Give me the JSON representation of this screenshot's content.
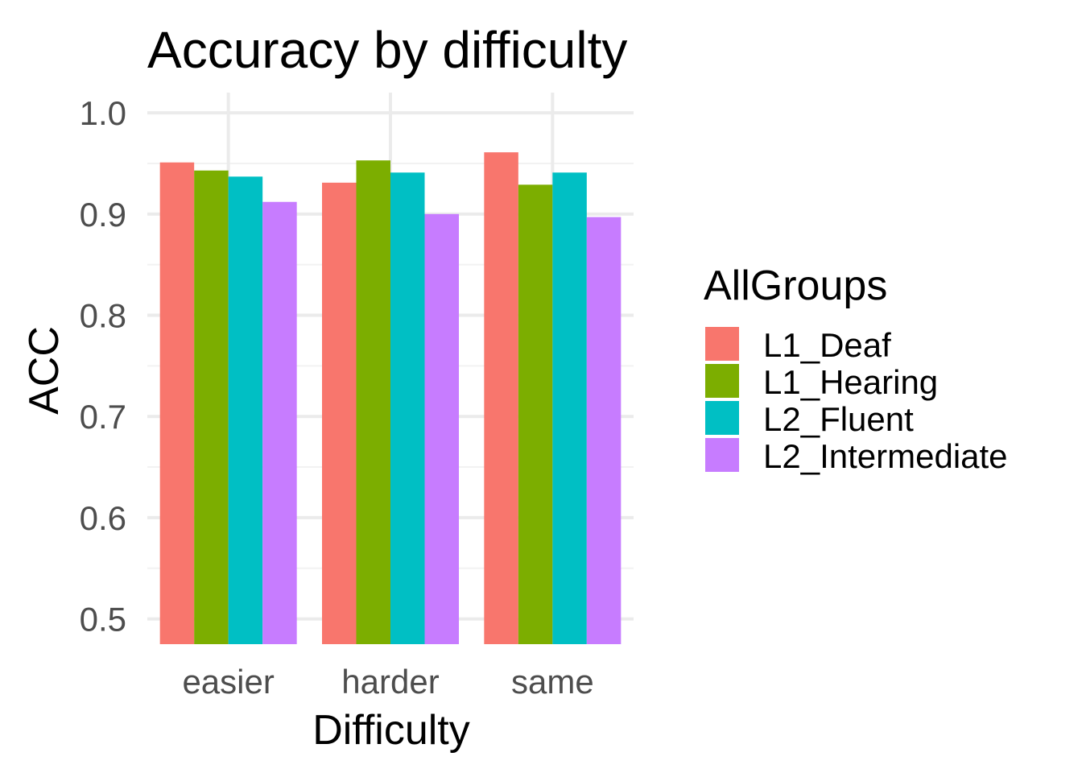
{
  "chart_data": {
    "type": "bar",
    "title": "Accuracy by difficulty",
    "xlabel": "Difficulty",
    "ylabel": "ACC",
    "ylim": [
      0.475,
      1.02
    ],
    "yticks": [
      "0.5",
      "0.6",
      "0.7",
      "0.8",
      "0.9",
      "1.0"
    ],
    "categories": [
      "easier",
      "harder",
      "same"
    ],
    "legend_title": "AllGroups",
    "legend_position": "right",
    "series": [
      {
        "name": "L1_Deaf",
        "color": "#F8766D",
        "values": [
          0.951,
          0.931,
          0.961
        ]
      },
      {
        "name": "L1_Hearing",
        "color": "#7CAE00",
        "values": [
          0.943,
          0.953,
          0.929
        ]
      },
      {
        "name": "L2_Fluent",
        "color": "#00BFC4",
        "values": [
          0.937,
          0.941,
          0.941
        ]
      },
      {
        "name": "L2_Intermediate",
        "color": "#C77CFF",
        "values": [
          0.912,
          0.9,
          0.897
        ]
      }
    ]
  }
}
